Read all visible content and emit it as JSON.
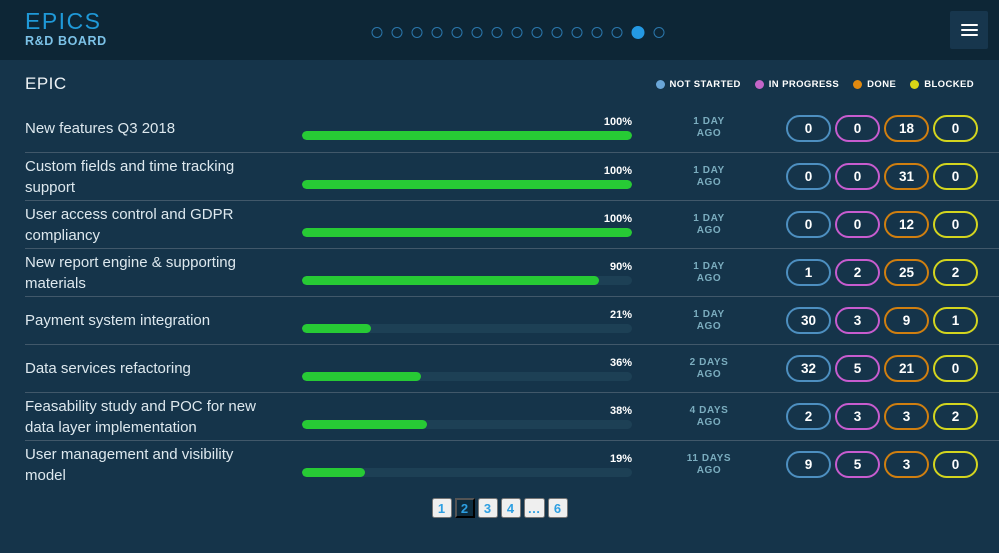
{
  "app": {
    "logo_title": "EPICS",
    "logo_subtitle": "R&D BOARD",
    "nav_dots": {
      "total": 15,
      "active": 14
    }
  },
  "statuses": [
    {
      "key": "not_started",
      "label": "NOT STARTED",
      "legend_color": "#6aa6d8",
      "pill_color": "#4d8fc0"
    },
    {
      "key": "in_progress",
      "label": "IN PROGRESS",
      "legend_color": "#c465c8",
      "pill_color": "#c75ccf"
    },
    {
      "key": "done",
      "label": "DONE",
      "legend_color": "#e0890f",
      "pill_color": "#d07f10"
    },
    {
      "key": "blocked",
      "label": "BLOCKED",
      "legend_color": "#d9d616",
      "pill_color": "#d3d51f"
    }
  ],
  "colors": {
    "progress_fill": "#27ca35",
    "progress_track": "#1d4055",
    "accent_blue": "#2d9fe2"
  },
  "table": {
    "header": "EPIC",
    "rows": [
      {
        "title": "New features Q3 2018",
        "progress_label": "100%",
        "progress_value": 100,
        "updated_line1": "1 DAY",
        "updated_line2": "AGO",
        "counts": [
          "0",
          "0",
          "18",
          "0"
        ]
      },
      {
        "title": "Custom fields and time tracking support",
        "progress_label": "100%",
        "progress_value": 100,
        "updated_line1": "1 DAY",
        "updated_line2": "AGO",
        "counts": [
          "0",
          "0",
          "31",
          "0"
        ]
      },
      {
        "title": "User access control and GDPR compliancy",
        "progress_label": "100%",
        "progress_value": 100,
        "updated_line1": "1 DAY",
        "updated_line2": "AGO",
        "counts": [
          "0",
          "0",
          "12",
          "0"
        ]
      },
      {
        "title": "New report engine & supporting materials",
        "progress_label": "90%",
        "progress_value": 90,
        "updated_line1": "1 DAY",
        "updated_line2": "AGO",
        "counts": [
          "1",
          "2",
          "25",
          "2"
        ]
      },
      {
        "title": "Payment system integration",
        "progress_label": "21%",
        "progress_value": 21,
        "updated_line1": "1 DAY",
        "updated_line2": "AGO",
        "counts": [
          "30",
          "3",
          "9",
          "1"
        ]
      },
      {
        "title": "Data services refactoring",
        "progress_label": "36%",
        "progress_value": 36,
        "updated_line1": "2 DAYS",
        "updated_line2": "AGO",
        "counts": [
          "32",
          "5",
          "21",
          "0"
        ]
      },
      {
        "title": "Feasability study and POC for new data layer implementation",
        "progress_label": "38%",
        "progress_value": 38,
        "updated_line1": "4 DAYS",
        "updated_line2": "AGO",
        "counts": [
          "2",
          "3",
          "3",
          "2"
        ]
      },
      {
        "title": "User management and visibility model",
        "progress_label": "19%",
        "progress_value": 19,
        "updated_line1": "11 DAYS",
        "updated_line2": "AGO",
        "counts": [
          "9",
          "5",
          "3",
          "0"
        ]
      }
    ]
  },
  "pagination": {
    "pages": [
      "1",
      "2",
      "3",
      "4",
      "…",
      "6"
    ],
    "current": "2"
  }
}
